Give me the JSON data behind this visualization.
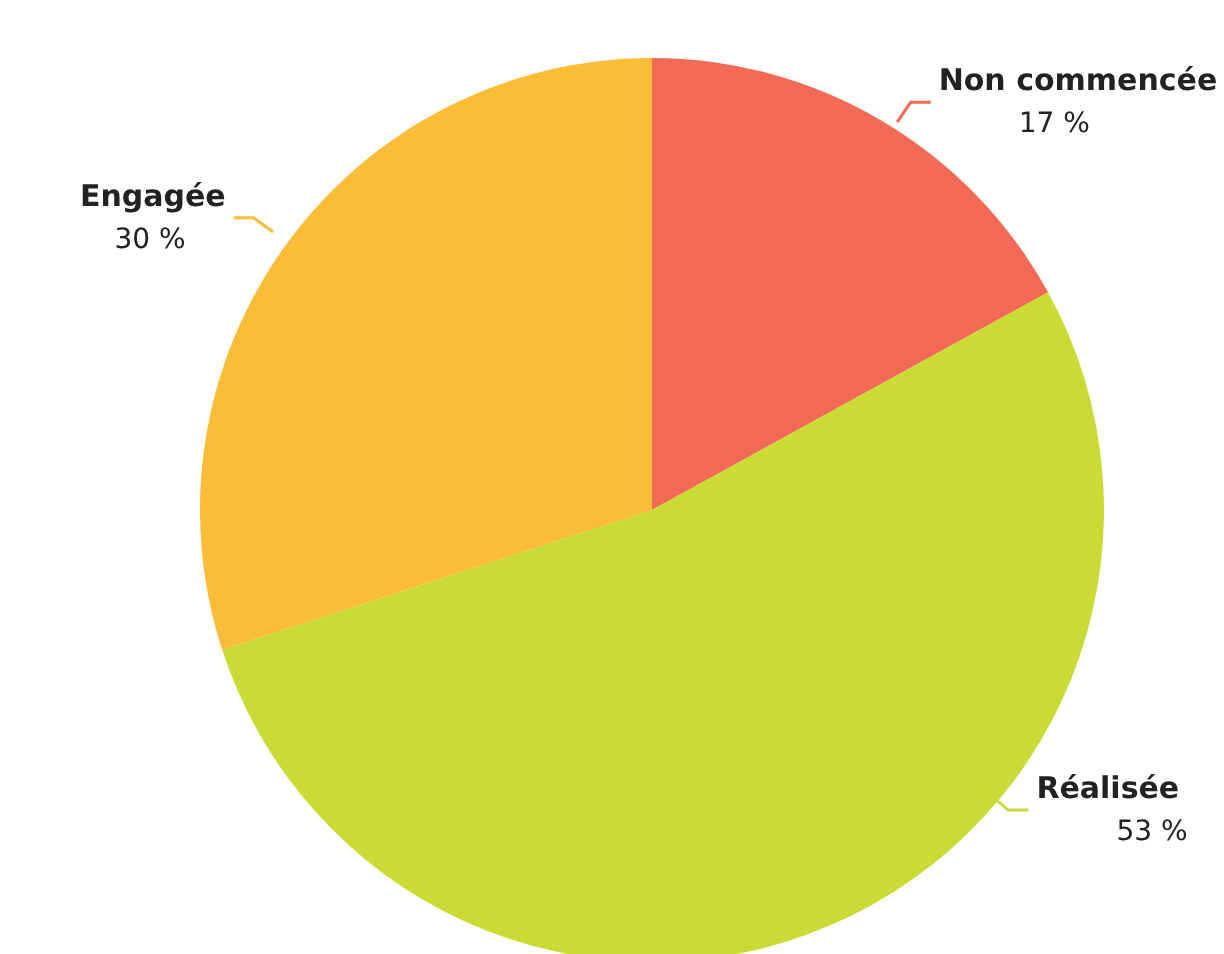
{
  "chart_data": {
    "type": "pie",
    "categories": [
      "Non commencée",
      "Réalisée",
      "Engagée"
    ],
    "values": [
      17,
      53,
      30
    ],
    "value_labels": [
      "17 %",
      "53 %",
      "30 %"
    ],
    "colors": [
      "#f26a55",
      "#cadb35",
      "#fbbc38"
    ],
    "legend": false
  }
}
